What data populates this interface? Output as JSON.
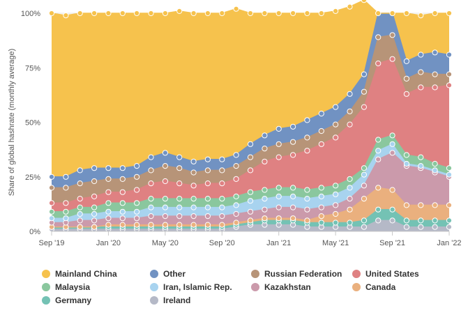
{
  "chart_data": {
    "type": "area",
    "stacking": "percent",
    "ylabel": "Share of global hashrate (monthly average)",
    "ylim": [
      0,
      100
    ],
    "yticks": [
      "0%",
      "25%",
      "50%",
      "75%",
      "100%"
    ],
    "xticks": [
      "Sep '19",
      "Jan '20",
      "May '20",
      "Sep '20",
      "Jan '21",
      "May '21",
      "Sep '21",
      "Jan '22"
    ],
    "x": [
      "2019-09",
      "2019-10",
      "2019-11",
      "2019-12",
      "2020-01",
      "2020-02",
      "2020-03",
      "2020-04",
      "2020-05",
      "2020-06",
      "2020-07",
      "2020-08",
      "2020-09",
      "2020-10",
      "2020-11",
      "2020-12",
      "2021-01",
      "2021-02",
      "2021-03",
      "2021-04",
      "2021-05",
      "2021-06",
      "2021-07",
      "2021-08",
      "2021-09",
      "2021-10",
      "2021-11",
      "2021-12",
      "2022-01"
    ],
    "grid": true,
    "legend_position": "bottom",
    "series": [
      {
        "name": "Ireland",
        "color": "#b5b9c7",
        "values": [
          1,
          1,
          1,
          1,
          1,
          1,
          1,
          1,
          1,
          1,
          1,
          1,
          1,
          2,
          3,
          3,
          3,
          3,
          2,
          2,
          2,
          2,
          2,
          5,
          5,
          2,
          2,
          2,
          2
        ]
      },
      {
        "name": "Germany",
        "color": "#74c2b4",
        "values": [
          1,
          1,
          1,
          1,
          1,
          1,
          1,
          1,
          1,
          1,
          1,
          1,
          1,
          1,
          1,
          2,
          2,
          2,
          2,
          2,
          2,
          2,
          3,
          5,
          5,
          3,
          3,
          3,
          3
        ]
      },
      {
        "name": "Canada",
        "color": "#eab07e",
        "values": [
          0,
          0,
          0,
          0,
          1,
          1,
          1,
          1,
          1,
          1,
          1,
          1,
          1,
          1,
          1,
          1,
          1,
          1,
          1,
          3,
          4,
          6,
          10,
          10,
          9,
          7,
          7,
          7,
          7
        ]
      },
      {
        "name": "Kazakhstan",
        "color": "#cb9aab",
        "values": [
          2,
          2,
          3,
          3,
          3,
          3,
          3,
          4,
          4,
          4,
          4,
          4,
          4,
          4,
          4,
          4,
          5,
          5,
          5,
          4,
          4,
          5,
          6,
          13,
          17,
          18,
          17,
          15,
          13
        ]
      },
      {
        "name": "Iran, Islamic Rep.",
        "color": "#a8d3ef",
        "values": [
          2,
          2,
          3,
          3,
          3,
          3,
          3,
          4,
          4,
          4,
          4,
          4,
          4,
          4,
          5,
          5,
          5,
          5,
          5,
          5,
          5,
          5,
          5,
          4,
          4,
          1,
          1,
          1,
          1
        ]
      },
      {
        "name": "Malaysia",
        "color": "#8ac79e",
        "values": [
          3,
          3,
          3,
          3,
          4,
          4,
          4,
          4,
          4,
          4,
          4,
          4,
          4,
          4,
          4,
          4,
          4,
          4,
          4,
          4,
          4,
          4,
          3,
          5,
          4,
          4,
          4,
          3,
          3
        ]
      },
      {
        "name": "United States",
        "color": "#df8182",
        "values": [
          4,
          4,
          4,
          5,
          5,
          5,
          6,
          7,
          8,
          7,
          6,
          7,
          7,
          8,
          10,
          13,
          14,
          15,
          18,
          20,
          22,
          25,
          28,
          35,
          35,
          28,
          32,
          35,
          38
        ]
      },
      {
        "name": "Russian Federation",
        "color": "#b79478",
        "values": [
          7,
          7,
          7,
          7,
          6,
          6,
          6,
          6,
          7,
          7,
          6,
          6,
          6,
          6,
          6,
          6,
          6,
          6,
          6,
          6,
          6,
          6,
          7,
          12,
          11,
          7,
          7,
          6,
          5
        ]
      },
      {
        "name": "Other",
        "color": "#7192c2",
        "values": [
          5,
          5,
          6,
          6,
          5,
          5,
          5,
          6,
          6,
          5,
          5,
          5,
          5,
          5,
          6,
          6,
          7,
          7,
          8,
          8,
          8,
          8,
          8,
          11,
          10,
          8,
          8,
          10,
          9
        ]
      },
      {
        "name": "Mainland China",
        "color": "#f6c24d",
        "values": [
          75,
          74,
          72,
          71,
          71,
          71,
          70,
          66,
          64,
          67,
          68,
          67,
          67,
          67,
          60,
          56,
          53,
          52,
          49,
          46,
          44,
          40,
          34,
          0,
          0,
          22,
          18,
          18,
          19
        ]
      }
    ]
  },
  "legend": [
    {
      "label": "Mainland China",
      "color": "#f6c24d"
    },
    {
      "label": "Other",
      "color": "#7192c2"
    },
    {
      "label": "Russian Federation",
      "color": "#b79478"
    },
    {
      "label": "United States",
      "color": "#df8182"
    },
    {
      "label": "Malaysia",
      "color": "#8ac79e"
    },
    {
      "label": "Iran, Islamic Rep.",
      "color": "#a8d3ef"
    },
    {
      "label": "Kazakhstan",
      "color": "#cb9aab"
    },
    {
      "label": "Canada",
      "color": "#eab07e"
    },
    {
      "label": "Germany",
      "color": "#74c2b4"
    },
    {
      "label": "Ireland",
      "color": "#b5b9c7"
    }
  ]
}
